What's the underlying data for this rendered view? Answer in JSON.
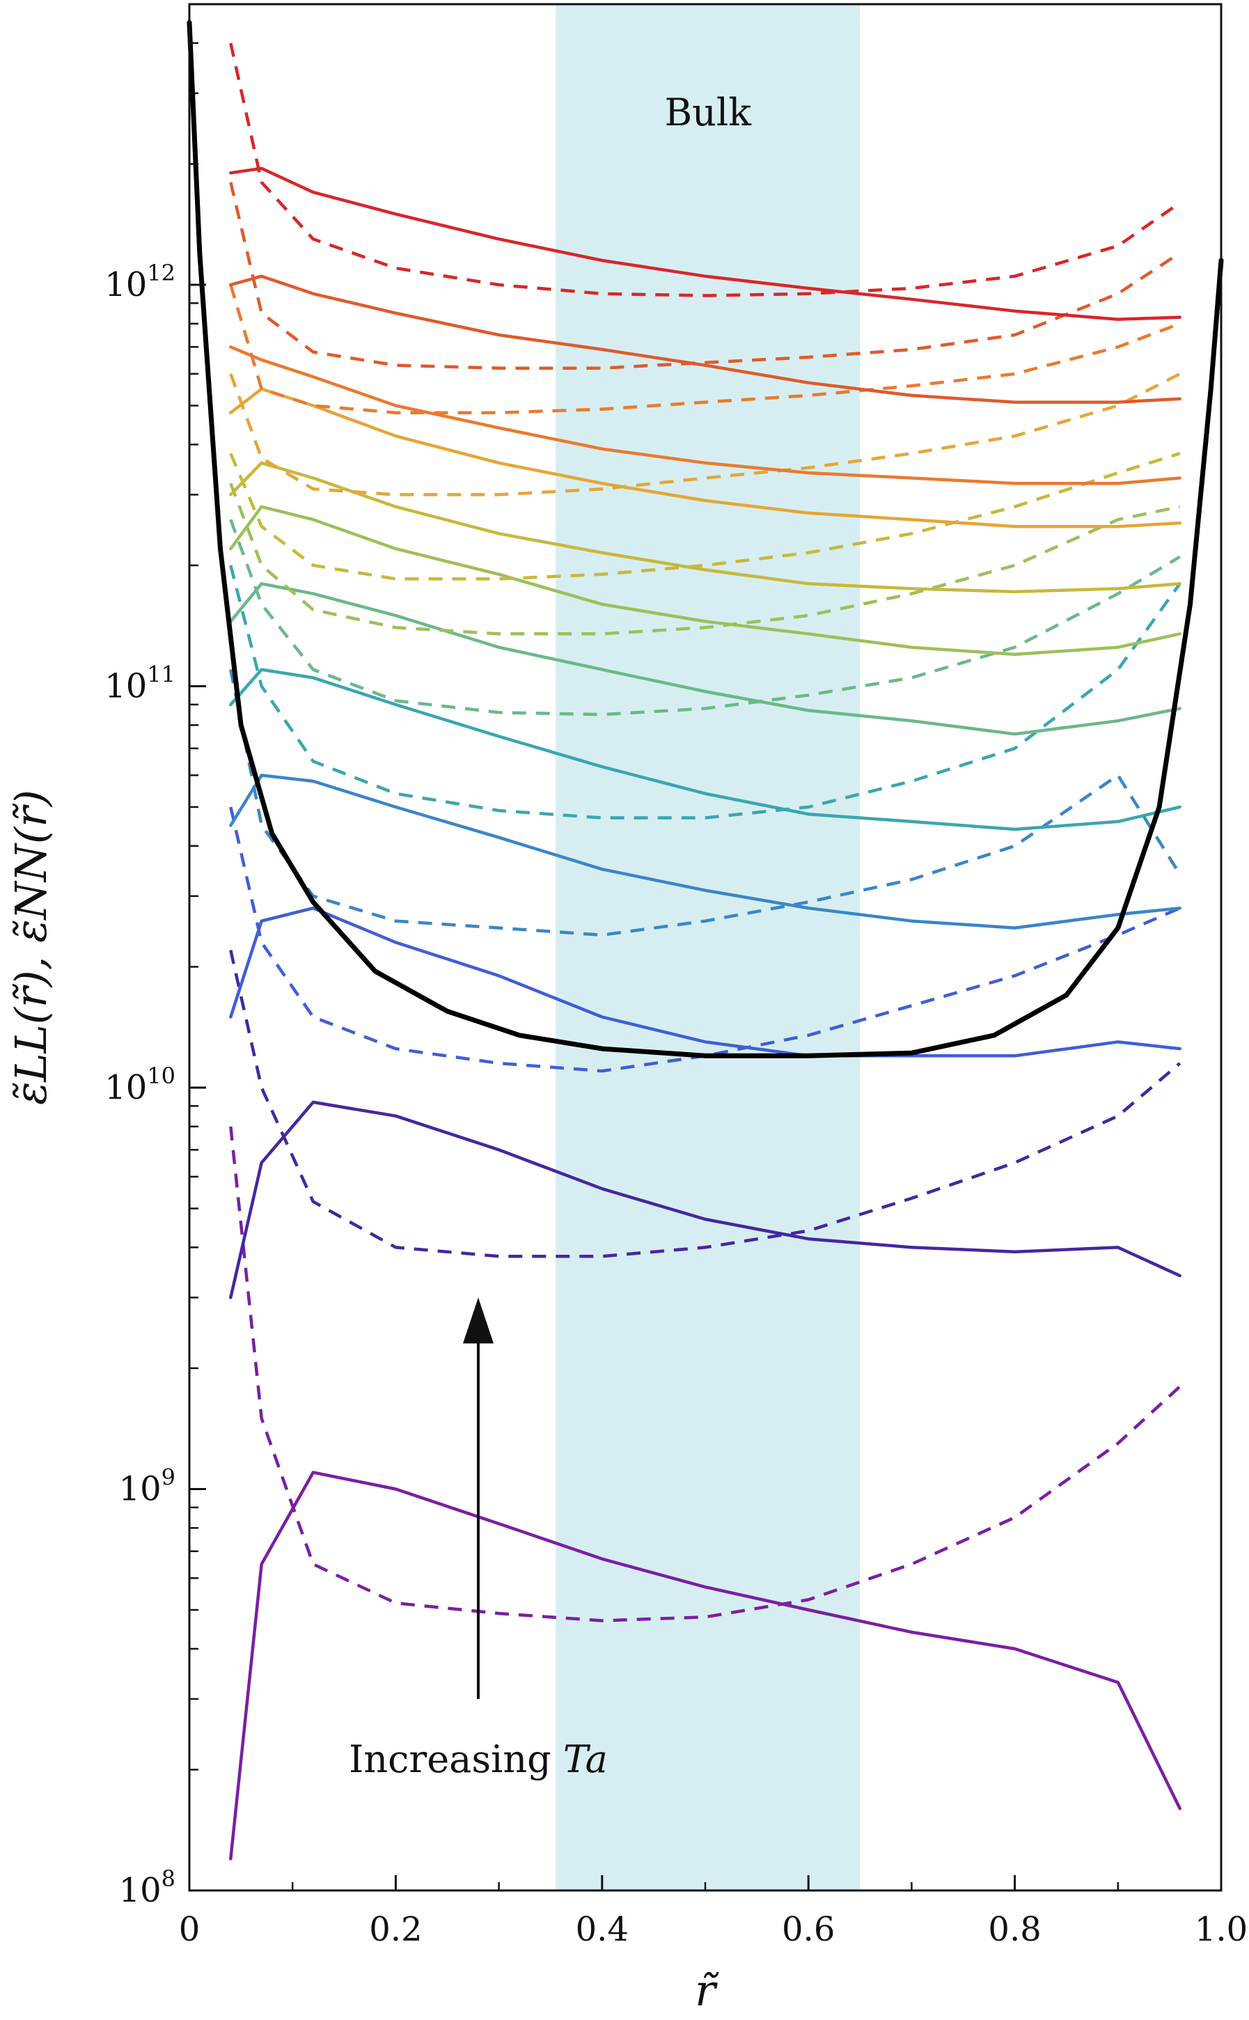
{
  "chart_data": {
    "type": "line",
    "xlabel": "r̃",
    "ylabel": "ε̃LL(r̃), ε̃NN(r̃)",
    "xlim": [
      0,
      1
    ],
    "ylim": [
      100000000.0,
      5000000000000.0
    ],
    "yscale": "log",
    "x_ticks": [
      "0",
      "0.2",
      "0.4",
      "0.6",
      "0.8",
      "1.0"
    ],
    "y_ticks": [
      {
        "base": "10",
        "exp": "8"
      },
      {
        "base": "10",
        "exp": "9"
      },
      {
        "base": "10",
        "exp": "10"
      },
      {
        "base": "10",
        "exp": "11"
      },
      {
        "base": "10",
        "exp": "12"
      }
    ],
    "legend": "none",
    "grid": false,
    "band": {
      "label": "Bulk",
      "x_start": 0.355,
      "x_end": 0.65,
      "color": "#d6eef1"
    },
    "annotation": {
      "prefix": "Increasing ",
      "italic": "Ta",
      "arrow_x": 0.28,
      "arrow_from": 300000000.0,
      "arrow_to": 3000000000.0
    },
    "x": [
      0.04,
      0.07,
      0.12,
      0.2,
      0.3,
      0.4,
      0.5,
      0.6,
      0.7,
      0.8,
      0.9,
      0.96
    ],
    "series": [
      {
        "color": "#7b1fa2",
        "style": "solid",
        "values": [
          120000000.0,
          650000000.0,
          1100000000.0,
          1000000000.0,
          820000000.0,
          670000000.0,
          570000000.0,
          500000000.0,
          440000000.0,
          400000000.0,
          330000000.0,
          160000000.0
        ]
      },
      {
        "color": "#7b1fa2",
        "style": "dashed",
        "values": [
          8000000000.0,
          1500000000.0,
          650000000.0,
          520000000.0,
          490000000.0,
          470000000.0,
          480000000.0,
          530000000.0,
          650000000.0,
          850000000.0,
          1300000000.0,
          1800000000.0
        ]
      },
      {
        "color": "#4527a0",
        "style": "solid",
        "values": [
          3000000000.0,
          6500000000.0,
          9200000000.0,
          8500000000.0,
          7000000000.0,
          5600000000.0,
          4700000000.0,
          4200000000.0,
          4000000000.0,
          3900000000.0,
          4000000000.0,
          3400000000.0
        ]
      },
      {
        "color": "#4527a0",
        "style": "dashed",
        "values": [
          22000000000.0,
          10000000000.0,
          5200000000.0,
          4000000000.0,
          3800000000.0,
          3800000000.0,
          4000000000.0,
          4400000000.0,
          5300000000.0,
          6500000000.0,
          8500000000.0,
          11500000000.0
        ]
      },
      {
        "color": "#3f5fd6",
        "style": "solid",
        "values": [
          15000000000.0,
          26000000000.0,
          28000000000.0,
          23000000000.0,
          19000000000.0,
          15000000000.0,
          13000000000.0,
          12000000000.0,
          12000000000.0,
          12000000000.0,
          13000000000.0,
          12500000000.0
        ]
      },
      {
        "color": "#3f5fd6",
        "style": "dashed",
        "values": [
          50000000000.0,
          23000000000.0,
          15000000000.0,
          12500000000.0,
          11500000000.0,
          11000000000.0,
          12000000000.0,
          13500000000.0,
          16000000000.0,
          19000000000.0,
          24000000000.0,
          28000000000.0
        ]
      },
      {
        "color": "#3a86c8",
        "style": "solid",
        "values": [
          45000000000.0,
          60000000000.0,
          58000000000.0,
          50000000000.0,
          42000000000.0,
          35000000000.0,
          31000000000.0,
          28000000000.0,
          26000000000.0,
          25000000000.0,
          27000000000.0,
          28000000000.0
        ]
      },
      {
        "color": "#3a86c8",
        "style": "dashed",
        "values": [
          110000000000.0,
          45000000000.0,
          30000000000.0,
          26000000000.0,
          25000000000.0,
          24000000000.0,
          26000000000.0,
          29000000000.0,
          33000000000.0,
          40000000000.0,
          60000000000.0,
          34000000000.0
        ]
      },
      {
        "color": "#3aa6b0",
        "style": "solid",
        "values": [
          90000000000.0,
          110000000000.0,
          105000000000.0,
          90000000000.0,
          75000000000.0,
          63000000000.0,
          54000000000.0,
          48000000000.0,
          46000000000.0,
          44000000000.0,
          46000000000.0,
          50000000000.0
        ]
      },
      {
        "color": "#3aa6b0",
        "style": "dashed",
        "values": [
          200000000000.0,
          100000000000.0,
          65000000000.0,
          54000000000.0,
          49000000000.0,
          47000000000.0,
          47000000000.0,
          50000000000.0,
          58000000000.0,
          70000000000.0,
          110000000000.0,
          180000000000.0
        ]
      },
      {
        "color": "#6bb888",
        "style": "solid",
        "values": [
          145000000000.0,
          180000000000.0,
          170000000000.0,
          150000000000.0,
          125000000000.0,
          110000000000.0,
          97000000000.0,
          87000000000.0,
          82000000000.0,
          76000000000.0,
          82000000000.0,
          88000000000.0
        ]
      },
      {
        "color": "#6bb888",
        "style": "dashed",
        "values": [
          260000000000.0,
          160000000000.0,
          110000000000.0,
          92000000000.0,
          86000000000.0,
          85000000000.0,
          88000000000.0,
          95000000000.0,
          105000000000.0,
          125000000000.0,
          170000000000.0,
          210000000000.0
        ]
      },
      {
        "color": "#9cc05a",
        "style": "solid",
        "values": [
          220000000000.0,
          280000000000.0,
          260000000000.0,
          220000000000.0,
          190000000000.0,
          160000000000.0,
          145000000000.0,
          135000000000.0,
          125000000000.0,
          120000000000.0,
          125000000000.0,
          135000000000.0
        ]
      },
      {
        "color": "#9cc05a",
        "style": "dashed",
        "values": [
          320000000000.0,
          200000000000.0,
          155000000000.0,
          140000000000.0,
          135000000000.0,
          135000000000.0,
          140000000000.0,
          150000000000.0,
          170000000000.0,
          200000000000.0,
          260000000000.0,
          280000000000.0
        ]
      },
      {
        "color": "#c8b83a",
        "style": "solid",
        "values": [
          300000000000.0,
          360000000000.0,
          330000000000.0,
          280000000000.0,
          240000000000.0,
          215000000000.0,
          195000000000.0,
          180000000000.0,
          175000000000.0,
          172000000000.0,
          175000000000.0,
          180000000000.0
        ]
      },
      {
        "color": "#c8b83a",
        "style": "dashed",
        "values": [
          380000000000.0,
          250000000000.0,
          200000000000.0,
          185000000000.0,
          185000000000.0,
          190000000000.0,
          200000000000.0,
          215000000000.0,
          240000000000.0,
          280000000000.0,
          340000000000.0,
          380000000000.0
        ]
      },
      {
        "color": "#e6a536",
        "style": "solid",
        "values": [
          480000000000.0,
          550000000000.0,
          500000000000.0,
          420000000000.0,
          360000000000.0,
          320000000000.0,
          290000000000.0,
          270000000000.0,
          260000000000.0,
          250000000000.0,
          250000000000.0,
          255000000000.0
        ]
      },
      {
        "color": "#e6a536",
        "style": "dashed",
        "values": [
          600000000000.0,
          370000000000.0,
          310000000000.0,
          300000000000.0,
          300000000000.0,
          310000000000.0,
          330000000000.0,
          350000000000.0,
          380000000000.0,
          420000000000.0,
          500000000000.0,
          600000000000.0
        ]
      },
      {
        "color": "#ea7a2e",
        "style": "solid",
        "values": [
          700000000000.0,
          650000000000.0,
          590000000000.0,
          500000000000.0,
          440000000000.0,
          390000000000.0,
          360000000000.0,
          340000000000.0,
          330000000000.0,
          320000000000.0,
          320000000000.0,
          330000000000.0
        ]
      },
      {
        "color": "#ea7a2e",
        "style": "dashed",
        "values": [
          1000000000000.0,
          550000000000.0,
          500000000000.0,
          480000000000.0,
          480000000000.0,
          490000000000.0,
          510000000000.0,
          530000000000.0,
          560000000000.0,
          600000000000.0,
          700000000000.0,
          800000000000.0
        ]
      },
      {
        "color": "#e05a2a",
        "style": "solid",
        "values": [
          1000000000000.0,
          1050000000000.0,
          950000000000.0,
          850000000000.0,
          750000000000.0,
          690000000000.0,
          630000000000.0,
          570000000000.0,
          530000000000.0,
          510000000000.0,
          510000000000.0,
          520000000000.0
        ]
      },
      {
        "color": "#e05a2a",
        "style": "dashed",
        "values": [
          1800000000000.0,
          850000000000.0,
          680000000000.0,
          630000000000.0,
          620000000000.0,
          620000000000.0,
          640000000000.0,
          660000000000.0,
          690000000000.0,
          750000000000.0,
          950000000000.0,
          1200000000000.0
        ]
      },
      {
        "color": "#d9262a",
        "style": "solid",
        "values": [
          1900000000000.0,
          1950000000000.0,
          1700000000000.0,
          1500000000000.0,
          1300000000000.0,
          1150000000000.0,
          1050000000000.0,
          980000000000.0,
          920000000000.0,
          860000000000.0,
          820000000000.0,
          830000000000.0
        ]
      },
      {
        "color": "#d9262a",
        "style": "dashed",
        "values": [
          4000000000000.0,
          1800000000000.0,
          1300000000000.0,
          1100000000000.0,
          1000000000000.0,
          950000000000.0,
          940000000000.0,
          950000000000.0,
          980000000000.0,
          1050000000000.0,
          1250000000000.0,
          1600000000000.0
        ]
      },
      {
        "color": "#000000",
        "style": "solid",
        "width": "thick",
        "x": [
          0.0,
          0.01,
          0.03,
          0.05,
          0.08,
          0.12,
          0.18,
          0.25,
          0.32,
          0.4,
          0.5,
          0.6,
          0.7,
          0.78,
          0.85,
          0.9,
          0.94,
          0.97,
          0.99,
          1.0
        ],
        "values": [
          4500000000000.0,
          1200000000000.0,
          220000000000.0,
          80000000000.0,
          43000000000.0,
          29000000000.0,
          19500000000.0,
          15500000000.0,
          13500000000.0,
          12500000000.0,
          12000000000.0,
          12000000000.0,
          12200000000.0,
          13500000000.0,
          17000000000.0,
          25000000000.0,
          50000000000.0,
          160000000000.0,
          550000000000.0,
          1150000000000.0
        ]
      }
    ]
  }
}
